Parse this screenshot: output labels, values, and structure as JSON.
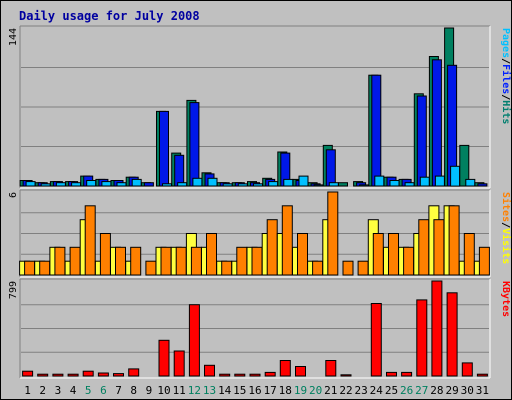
{
  "chart_data": {
    "type": "bar",
    "title": "Daily usage for July 2008",
    "categories": [
      "1",
      "2",
      "3",
      "4",
      "5",
      "6",
      "7",
      "8",
      "9",
      "10",
      "11",
      "12",
      "13",
      "14",
      "15",
      "16",
      "17",
      "18",
      "19",
      "20",
      "21",
      "22",
      "23",
      "24",
      "25",
      "26",
      "27",
      "28",
      "29",
      "30",
      "31"
    ],
    "weekend_days": [
      "5",
      "6",
      "12",
      "13",
      "19",
      "20",
      "26",
      "27"
    ],
    "panels": [
      {
        "name": "top",
        "max_label": "144",
        "ymax": 144,
        "right_labels": [
          {
            "text": "Pages",
            "color": "#00c0ff"
          },
          {
            "text": "/",
            "color": "#000000"
          },
          {
            "text": "Files",
            "color": "#0020ff"
          },
          {
            "text": "/",
            "color": "#000000"
          },
          {
            "text": "Hits",
            "color": "#007f6f"
          }
        ],
        "series": [
          {
            "name": "Hits",
            "color": "#008060",
            "values": [
              5,
              3,
              4,
              4,
              9,
              6,
              5,
              8,
              3,
              68,
              30,
              78,
              12,
              3,
              3,
              4,
              7,
              31,
              6,
              3,
              37,
              3,
              4,
              101,
              8,
              6,
              84,
              118,
              144,
              37,
              3
            ]
          },
          {
            "name": "Files",
            "color": "#0018e8",
            "values": [
              5,
              3,
              4,
              4,
              9,
              6,
              5,
              8,
              3,
              68,
              28,
              76,
              11,
              3,
              3,
              3,
              6,
              30,
              5,
              2,
              33,
              0,
              3,
              101,
              8,
              6,
              82,
              115,
              110,
              0,
              2
            ]
          },
          {
            "name": "Pages",
            "color": "#00c0ff",
            "values": [
              4,
              2,
              3,
              3,
              5,
              4,
              3,
              6,
              0,
              2,
              3,
              7,
              7,
              2,
              2,
              2,
              4,
              6,
              9,
              1,
              3,
              0,
              1,
              9,
              5,
              3,
              8,
              9,
              18,
              6,
              0
            ]
          }
        ]
      },
      {
        "name": "middle",
        "max_label": "6",
        "ymax": 6,
        "right_labels": [
          {
            "text": "Sites",
            "color": "#ff8000"
          },
          {
            "text": "/",
            "color": "#000000"
          },
          {
            "text": "Visits",
            "color": "#ffff00"
          }
        ],
        "series": [
          {
            "name": "Visits",
            "color": "#ffff40",
            "values": [
              1,
              1,
              2,
              1,
              4,
              1,
              2,
              1,
              0,
              2,
              2,
              3,
              2,
              1,
              1,
              2,
              3,
              3,
              2,
              1,
              4,
              0,
              0,
              4,
              2,
              2,
              3,
              5,
              5,
              1,
              1
            ]
          },
          {
            "name": "Sites",
            "color": "#ff8000",
            "values": [
              1,
              1,
              2,
              2,
              5,
              3,
              2,
              2,
              1,
              2,
              2,
              2,
              3,
              1,
              2,
              2,
              4,
              5,
              3,
              1,
              6,
              1,
              1,
              3,
              3,
              2,
              4,
              4,
              5,
              3,
              2
            ]
          }
        ]
      },
      {
        "name": "bottom",
        "max_label": "799",
        "ymax": 799,
        "right_labels": [
          {
            "text": "KBytes",
            "color": "#ff0000"
          }
        ],
        "series": [
          {
            "name": "KBytes",
            "color": "#ff0000",
            "values": [
              40,
              15,
              15,
              15,
              40,
              25,
              20,
              60,
              0,
              300,
              210,
              600,
              90,
              15,
              15,
              15,
              30,
              130,
              80,
              0,
              130,
              10,
              0,
              610,
              30,
              30,
              640,
              799,
              700,
              110,
              15
            ]
          }
        ]
      }
    ]
  }
}
